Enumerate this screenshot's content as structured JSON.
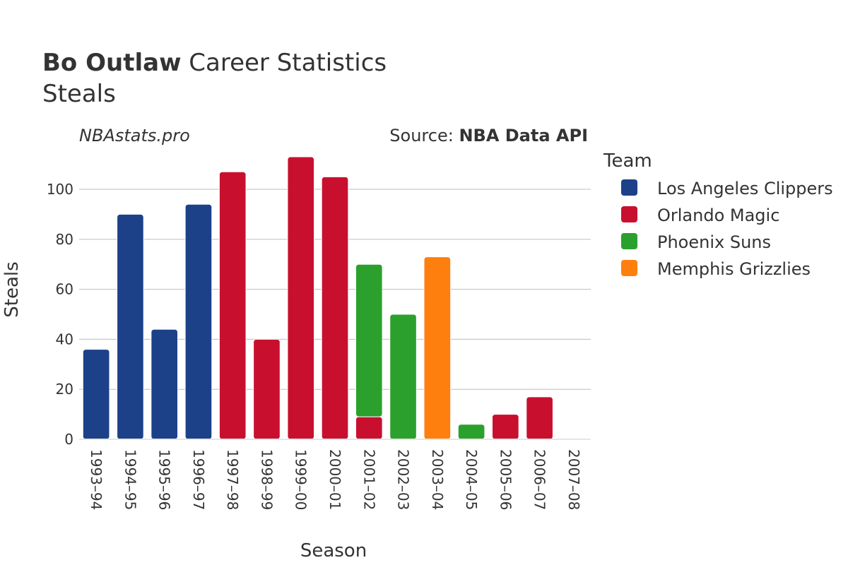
{
  "title": {
    "player": "Bo Outlaw",
    "rest": " Career Statistics",
    "subtitle": "Steals"
  },
  "watermark": "NBAstats.pro",
  "source": {
    "prefix": "Source: ",
    "name": "NBA Data API"
  },
  "legend": {
    "title": "Team",
    "items": [
      {
        "name": "Los Angeles Clippers",
        "color": "#1c4189"
      },
      {
        "name": "Orlando Magic",
        "color": "#c8102e"
      },
      {
        "name": "Phoenix Suns",
        "color": "#2ca02c"
      },
      {
        "name": "Memphis Grizzlies",
        "color": "#ff7f0e"
      }
    ]
  },
  "chart_data": {
    "type": "bar",
    "stacked": true,
    "xlabel": "Season",
    "ylabel": "Steals",
    "ylim": [
      0,
      113
    ],
    "yticks": [
      0,
      20,
      40,
      60,
      80,
      100
    ],
    "grid": true,
    "legend_position": "right",
    "categories": [
      "1993–94",
      "1994–95",
      "1995–96",
      "1996–97",
      "1997–98",
      "1998–99",
      "1999–00",
      "2000–01",
      "2001–02",
      "2002–03",
      "2003–04",
      "2004–05",
      "2005–06",
      "2006–07",
      "2007–08"
    ],
    "series": [
      {
        "name": "Los Angeles Clippers",
        "color": "#1c4189",
        "values": [
          36,
          90,
          44,
          94,
          0,
          0,
          0,
          0,
          0,
          0,
          0,
          0,
          0,
          0,
          0
        ]
      },
      {
        "name": "Orlando Magic",
        "color": "#c8102e",
        "values": [
          0,
          0,
          0,
          0,
          107,
          40,
          113,
          105,
          9,
          0,
          0,
          0,
          10,
          17,
          0
        ]
      },
      {
        "name": "Phoenix Suns",
        "color": "#2ca02c",
        "values": [
          0,
          0,
          0,
          0,
          0,
          0,
          0,
          0,
          61,
          50,
          0,
          6,
          0,
          0,
          0
        ]
      },
      {
        "name": "Memphis Grizzlies",
        "color": "#ff7f0e",
        "values": [
          0,
          0,
          0,
          0,
          0,
          0,
          0,
          0,
          0,
          0,
          73,
          0,
          0,
          0,
          0
        ]
      }
    ]
  }
}
